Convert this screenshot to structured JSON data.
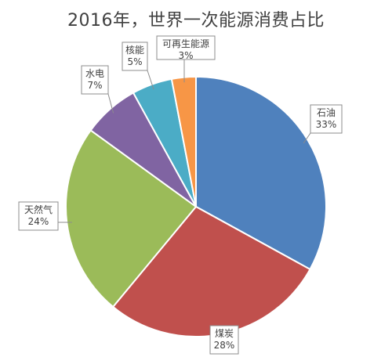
{
  "chart_data": {
    "type": "pie",
    "title": "2016年，世界一次能源消费占比",
    "slices": [
      {
        "name": "石油",
        "value": 33,
        "label": "33%",
        "color": "#4f81bd"
      },
      {
        "name": "煤炭",
        "value": 28,
        "label": "28%",
        "color": "#c0504d"
      },
      {
        "name": "天然气",
        "value": 24,
        "label": "24%",
        "color": "#9bbb59"
      },
      {
        "name": "水电",
        "value": 7,
        "label": "7%",
        "color": "#8064a2"
      },
      {
        "name": "核能",
        "value": 5,
        "label": "5%",
        "color": "#4bacc6"
      },
      {
        "name": "可再生能源",
        "value": 3,
        "label": "3%",
        "color": "#f79646"
      }
    ],
    "start_angle": "12 o'clock",
    "direction": "clockwise",
    "legend": "none",
    "data_labels": "callouts"
  }
}
